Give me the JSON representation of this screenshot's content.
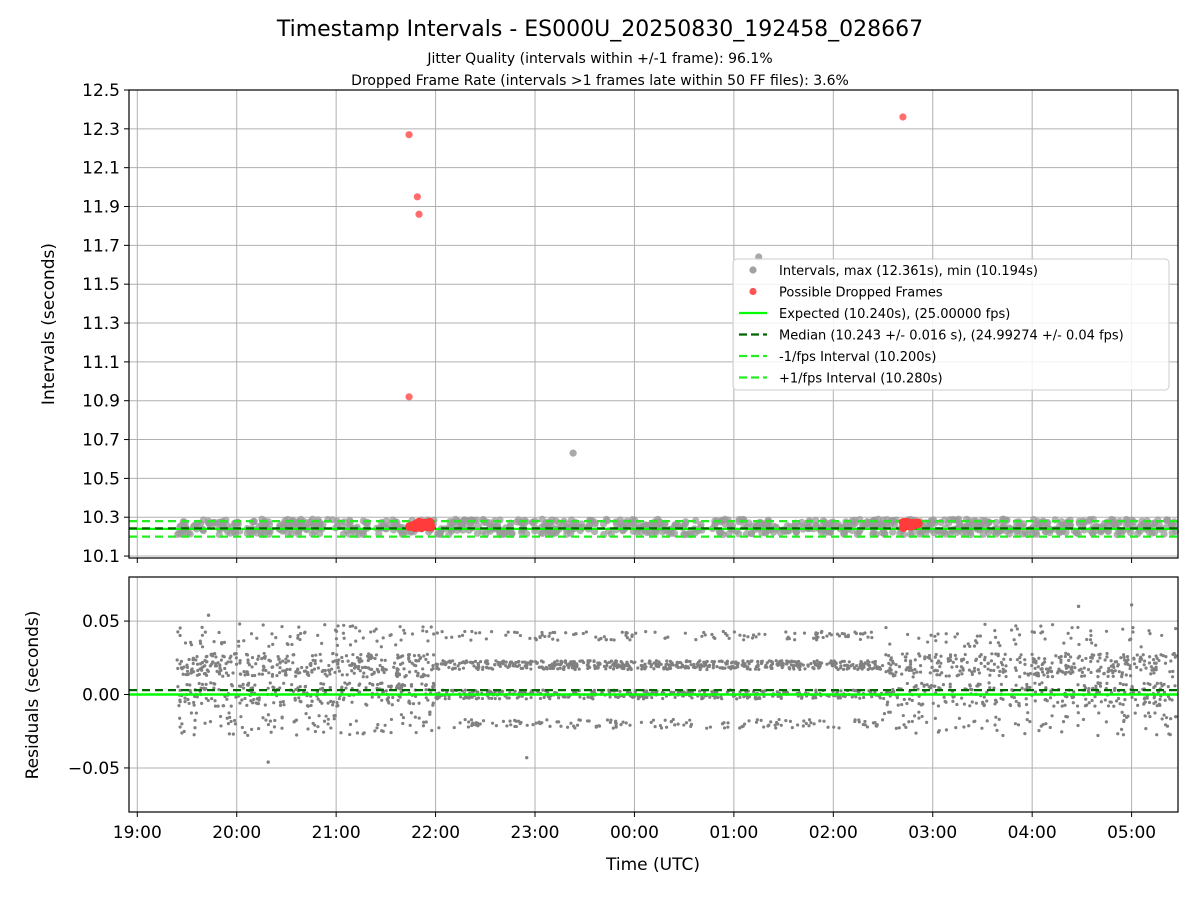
{
  "figure": {
    "title": "Timestamp Intervals - ES000U_20250830_192458_028667",
    "subtitle_1": "Jitter Quality (intervals within +/-1 frame): 96.1%",
    "subtitle_2": "Dropped Frame Rate (intervals >1 frames late within 50 FF files): 3.6%"
  },
  "colors": {
    "intervals": "#808080",
    "dropped": "#ff3b3b",
    "expected": "#00ff00",
    "median": "#006400",
    "bounds": "#22ee22",
    "grid": "#b0b0b0"
  },
  "chart_data": [
    {
      "type": "scatter",
      "panel": "intervals",
      "ylabel": "Intervals (seconds)",
      "ylim": [
        10.09,
        12.5
      ],
      "yticks": [
        10.1,
        10.3,
        10.5,
        10.7,
        10.9,
        11.1,
        11.3,
        11.5,
        11.7,
        11.9,
        12.1,
        12.3,
        12.5
      ],
      "ytick_labels": [
        "10.1",
        "10.3",
        "10.5",
        "10.7",
        "10.9",
        "11.1",
        "11.3",
        "11.5",
        "11.7",
        "11.9",
        "12.1",
        "12.3",
        "12.5"
      ],
      "x_start": "2025-08-30 19:24",
      "x_end": "2025-08-31 05:27",
      "grid": true,
      "legend_position": "center-right",
      "legend": [
        {
          "label": "Intervals, max (12.361s), min (10.194s)",
          "marker": "dot",
          "color": "#a0a0a0"
        },
        {
          "label": "Possible Dropped Frames",
          "marker": "dot",
          "color": "#ff5555"
        },
        {
          "label": "Expected (10.240s), (25.00000 fps)",
          "marker": "line",
          "color": "#00ff00"
        },
        {
          "label": "Median (10.243 +/- 0.016 s), (24.99274 +/- 0.04 fps)",
          "marker": "dash",
          "color": "#006400"
        },
        {
          "label": "-1/fps Interval (10.200s)",
          "marker": "dash",
          "color": "#22ee22"
        },
        {
          "label": "+1/fps Interval (10.280s)",
          "marker": "dash",
          "color": "#22ee22"
        }
      ],
      "reference_lines": {
        "expected": 10.24,
        "median": 10.243,
        "minus_one_frame": 10.2,
        "plus_one_frame": 10.28
      },
      "interval_band": {
        "x_start": "2025-08-30 19:24",
        "x_end": "2025-08-31 05:27",
        "min": 10.2,
        "max": 10.3
      },
      "outlier_intervals": [
        {
          "x": "2025-08-30 23:23",
          "y": 10.63
        },
        {
          "x": "2025-08-31 01:15",
          "y": 11.64
        }
      ],
      "dropped_frames": [
        {
          "x": "2025-08-30 21:44",
          "y": 12.27
        },
        {
          "x": "2025-08-30 21:49",
          "y": 11.95
        },
        {
          "x": "2025-08-30 21:50",
          "y": 11.86
        },
        {
          "x": "2025-08-30 21:44",
          "y": 10.92
        },
        {
          "x": "2025-08-31 02:42",
          "y": 12.361
        }
      ],
      "dropped_frame_clusters": [
        {
          "x_start": "2025-08-30 21:43",
          "x_end": "2025-08-30 21:58",
          "y": 10.26
        },
        {
          "x_start": "2025-08-31 02:42",
          "x_end": "2025-08-31 02:52",
          "y": 10.26
        }
      ]
    },
    {
      "type": "scatter",
      "panel": "residuals",
      "xlabel": "Time (UTC)",
      "ylabel": "Residuals (seconds)",
      "ylim": [
        -0.08,
        0.08
      ],
      "yticks": [
        -0.05,
        0.0,
        0.05
      ],
      "ytick_labels": [
        "−0.05",
        "0.00",
        "0.05"
      ],
      "xlim": [
        "2025-08-30 18:55",
        "2025-08-31 05:28"
      ],
      "xticks": [
        "19:00",
        "20:00",
        "21:00",
        "22:00",
        "23:00",
        "00:00",
        "01:00",
        "02:00",
        "03:00",
        "04:00",
        "05:00"
      ],
      "grid": true,
      "reference_lines": {
        "expected": 0.0,
        "median": 0.003
      },
      "residual_levels": [
        -0.02,
        0.0,
        0.02,
        0.04
      ],
      "residual_spread": 0.003,
      "residual_range": [
        -0.046,
        0.061
      ],
      "notable_points": [
        {
          "x": "2025-08-30 19:43",
          "y": 0.054
        },
        {
          "x": "2025-08-30 20:19",
          "y": -0.046
        },
        {
          "x": "2025-08-30 22:55",
          "y": -0.043
        },
        {
          "x": "2025-08-31 04:28",
          "y": 0.06
        },
        {
          "x": "2025-08-31 05:00",
          "y": 0.061
        }
      ]
    }
  ]
}
